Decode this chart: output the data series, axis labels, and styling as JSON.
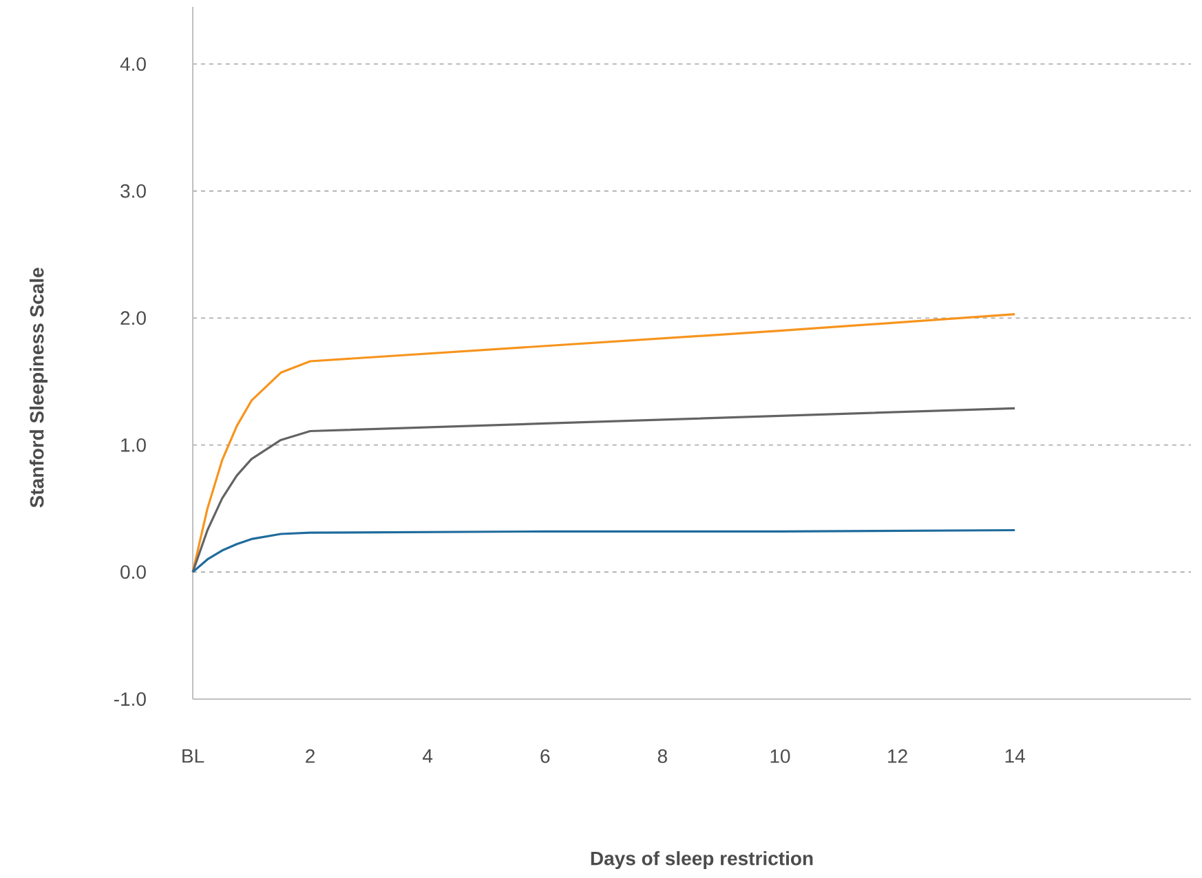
{
  "chart_data": {
    "type": "line",
    "xlabel": "Days of sleep restriction",
    "ylabel": "Stanford Sleepiness Scale",
    "series": [
      {
        "color": "#f7941d",
        "x": [
          0,
          0.25,
          0.5,
          0.75,
          1,
          1.5,
          2,
          6,
          10,
          14
        ],
        "values": [
          0,
          0.5,
          0.88,
          1.15,
          1.35,
          1.57,
          1.66,
          1.78,
          1.9,
          2.03
        ]
      },
      {
        "color": "#636363",
        "x": [
          0,
          0.25,
          0.5,
          0.75,
          1,
          1.5,
          2,
          6,
          10,
          14
        ],
        "values": [
          0,
          0.33,
          0.58,
          0.76,
          0.89,
          1.04,
          1.11,
          1.17,
          1.23,
          1.29
        ]
      },
      {
        "color": "#1f6b9c",
        "x": [
          0,
          0.25,
          0.5,
          0.75,
          1,
          1.5,
          2,
          6,
          10,
          14
        ],
        "values": [
          0,
          0.1,
          0.17,
          0.22,
          0.26,
          0.3,
          0.31,
          0.32,
          0.32,
          0.33
        ]
      }
    ],
    "xlim": [
      0,
      17
    ],
    "xticks": [
      {
        "value": 0,
        "label": "BL"
      },
      2,
      4,
      6,
      8,
      10,
      12,
      14
    ],
    "ylim": [
      -1,
      4.45
    ],
    "yticks": [
      {
        "value": -1,
        "label": "-1.0"
      },
      {
        "value": 0,
        "label": "0.0"
      },
      {
        "value": 1,
        "label": "1.0"
      },
      {
        "value": 2,
        "label": "2.0"
      },
      {
        "value": 3,
        "label": "3.0"
      },
      {
        "value": 4,
        "label": "4.0"
      }
    ],
    "grid": "y",
    "marker": "none",
    "line_style": "solid"
  }
}
